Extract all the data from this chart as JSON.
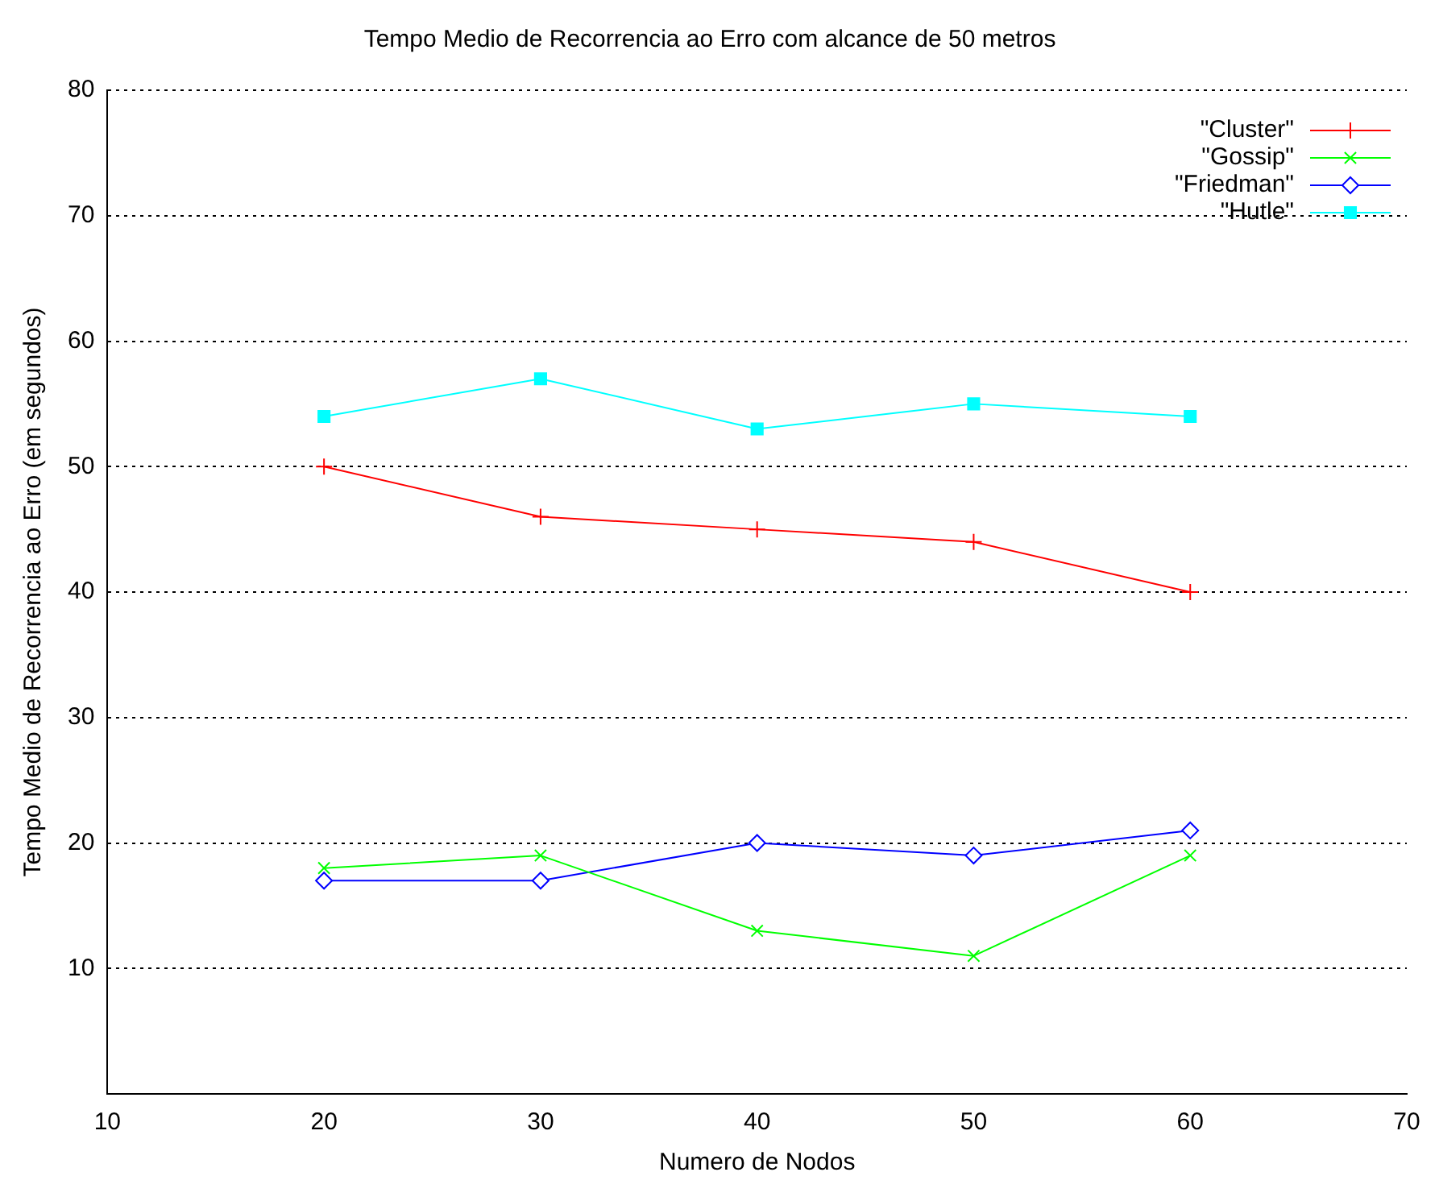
{
  "chart_data": {
    "type": "line",
    "title": "Tempo Medio de Recorrencia ao Erro com alcance de 50 metros",
    "xlabel": "Numero de Nodos",
    "ylabel": "Tempo Medio de Recorrencia ao Erro (em segundos)",
    "x": [
      20,
      30,
      40,
      50,
      60
    ],
    "series": [
      {
        "name": "\"Cluster\"",
        "color": "#ff0000",
        "marker": "cross",
        "values": [
          50,
          46,
          45,
          44,
          40
        ]
      },
      {
        "name": "\"Gossip\"",
        "color": "#00ff00",
        "marker": "x",
        "values": [
          18,
          19,
          13,
          11,
          19
        ]
      },
      {
        "name": "\"Friedman\"",
        "color": "#0000ff",
        "marker": "diamond",
        "values": [
          17,
          17,
          20,
          19,
          21
        ]
      },
      {
        "name": "\"Hutle\"",
        "color": "#00ffff",
        "marker": "square",
        "values": [
          54,
          57,
          53,
          55,
          54
        ]
      }
    ],
    "xlim": [
      10,
      70
    ],
    "xticks": [
      10,
      20,
      30,
      40,
      50,
      60,
      70
    ],
    "ylim": [
      0,
      80
    ],
    "yticks": [
      10,
      20,
      30,
      40,
      50,
      60,
      70,
      80
    ],
    "grid": "y",
    "legend": "top right"
  }
}
